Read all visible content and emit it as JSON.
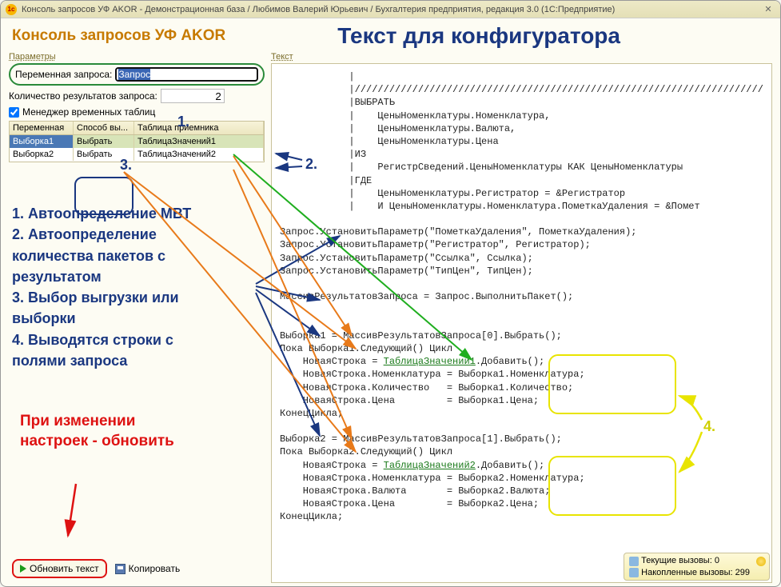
{
  "titlebar": {
    "text": "Консоль запросов УФ AKOR - Демонстрационная база / Любимов Валерий Юрьевич / Бухгалтерия предприятия, редакция 3.0  (1С:Предприятие)"
  },
  "header": {
    "app_title": "Консоль запросов УФ AKOR",
    "config_title": "Текст для конфигуратора"
  },
  "left": {
    "params_label": "Параметры",
    "var_label": "Переменная запроса:",
    "var_value": "Запрос",
    "qty_label": "Количество результатов запроса:",
    "qty_value": "2",
    "mvt_label": "Менеджер временных таблиц",
    "table": {
      "headers": [
        "Переменная",
        "Способ вы...",
        "Таблица приемника"
      ],
      "rows": [
        [
          "Выборка1",
          "Выбрать",
          "ТаблицаЗначений1"
        ],
        [
          "Выборка2",
          "Выбрать",
          "ТаблицаЗначений2"
        ]
      ]
    },
    "annotations": [
      "1. Автоопределение МВТ",
      "2. Автоопределение",
      "    количества пакетов с",
      "    результатом",
      "3. Выбор выгрузки или",
      "    выборки",
      "4. Выводятся строки с",
      "    полями запроса"
    ],
    "red_note_l1": "При изменении",
    "red_note_l2": "настроек - обновить",
    "update_btn": "Обновить текст",
    "copy_btn": "Копировать"
  },
  "right": {
    "text_label": "Текст",
    "code_lines": [
      "            |",
      "            |///////////////////////////////////////////////////////////////////////",
      "            |ВЫБРАТЬ",
      "            |    ЦеныНоменклатуры.Номенклатура,",
      "            |    ЦеныНоменклатуры.Валюта,",
      "            |    ЦеныНоменклатуры.Цена",
      "            |ИЗ",
      "            |    РегистрСведений.ЦеныНоменклатуры КАК ЦеныНоменклатуры",
      "            |ГДЕ",
      "            |    ЦеныНоменклатуры.Регистратор = &Регистратор",
      "            |    И ЦеныНоменклатуры.Номенклатура.ПометкаУдаления = &Помет",
      "",
      "Запрос.УстановитьПараметр(\"ПометкаУдаления\", ПометкаУдаления);",
      "Запрос.УстановитьПараметр(\"Регистратор\", Регистратор);",
      "Запрос.УстановитьПараметр(\"Ссылка\", Ссылка);",
      "Запрос.УстановитьПараметр(\"ТипЦен\", ТипЦен);",
      "",
      "МассивРезультатовЗапроса = Запрос.ВыполнитьПакет();",
      "",
      "",
      "Выборка1 = МассивРезультатовЗапроса[0].Выбрать();",
      "Пока Выборка1.Следующий() Цикл",
      "    НоваяСтрока = ТаблицаЗначений1.Добавить();",
      "    НоваяСтрока.Номенклатура = Выборка1.Номенклатура;",
      "    НоваяСтрока.Количество   = Выборка1.Количество;",
      "    НоваяСтрока.Цена         = Выборка1.Цена;",
      "КонецЦикла;",
      "",
      "Выборка2 = МассивРезультатовЗапроса[1].Выбрать();",
      "Пока Выборка2.Следующий() Цикл",
      "    НоваяСтрока = ТаблицаЗначений2.Добавить();",
      "    НоваяСтрока.Номенклатура = Выборка2.Номенклатура;",
      "    НоваяСтрока.Валюта       = Выборка2.Валюта;",
      "    НоваяСтрока.Цена         = Выборка2.Цена;",
      "КонецЦикла;"
    ]
  },
  "status": {
    "line1": "Текущие вызовы: 0",
    "line2": "Накопленные вызовы: 299"
  },
  "num_labels": {
    "n1": "1.",
    "n2": "2.",
    "n3": "3.",
    "n4": "4."
  },
  "colors": {
    "blue": "#1a3780",
    "orange": "#e87a1a",
    "green": "#1fae1f",
    "red": "#de1212",
    "yellow": "#e8e400"
  }
}
